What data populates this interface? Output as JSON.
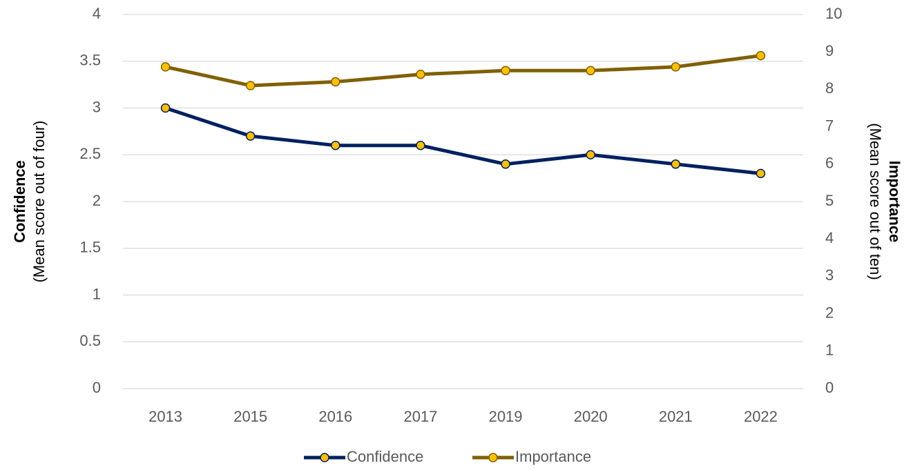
{
  "chart_data": {
    "type": "line",
    "ylabel": "Confidence",
    "ylabel_sub": "(Mean score out of four)",
    "y2label": "Importance",
    "y2label_sub": "(Mean score out of ten)",
    "categories": [
      "2013",
      "2015",
      "2016",
      "2017",
      "2019",
      "2020",
      "2021",
      "2022"
    ],
    "series": [
      {
        "name": "Confidence",
        "color": "#002060",
        "marker_color": "#ffc000",
        "values": [
          3.0,
          2.7,
          2.6,
          2.6,
          2.4,
          2.5,
          2.4,
          2.3
        ]
      },
      {
        "name": "Importance",
        "color": "#7f6000",
        "marker_color": "#ffc000",
        "axis": "y2",
        "values": [
          8.6,
          8.1,
          8.2,
          8.4,
          8.5,
          8.5,
          8.6,
          8.9
        ]
      }
    ],
    "ylim": [
      0,
      4
    ],
    "yticks": [
      0,
      0.5,
      1,
      1.5,
      2,
      2.5,
      3,
      3.5,
      4
    ],
    "y2lim": [
      0,
      10
    ],
    "y2ticks": [
      0,
      1,
      2,
      3,
      4,
      5,
      6,
      7,
      8,
      9,
      10
    ],
    "grid": true,
    "legend": "bottom"
  }
}
